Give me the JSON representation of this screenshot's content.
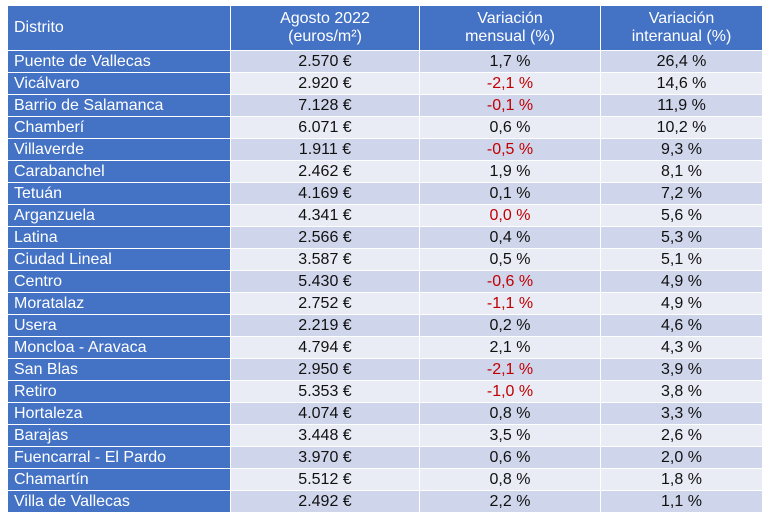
{
  "colors": {
    "header_bg": "#4472c4",
    "row_odd": "#cfd5ea",
    "row_even": "#e9ebf5",
    "negative_text": "#c00000"
  },
  "table": {
    "headers": {
      "district": "Distrito",
      "price_line1": "Agosto 2022",
      "price_line2": "(euros/m²)",
      "monthly_line1": "Variación",
      "monthly_line2": "mensual (%)",
      "annual_line1": "Variación",
      "annual_line2": "interanual (%)"
    },
    "rows": [
      {
        "district": "Puente de Vallecas",
        "price": "2.570 €",
        "monthly": "1,7 %",
        "annual": "26,4 %"
      },
      {
        "district": "Vicálvaro",
        "price": "2.920 €",
        "monthly": "-2,1 %",
        "annual": "14,6 %"
      },
      {
        "district": "Barrio de Salamanca",
        "price": "7.128 €",
        "monthly": "-0,1 %",
        "annual": "11,9 %"
      },
      {
        "district": "Chamberí",
        "price": "6.071 €",
        "monthly": "0,6 %",
        "annual": "10,2 %"
      },
      {
        "district": "Villaverde",
        "price": "1.911 €",
        "monthly": "-0,5 %",
        "annual": "9,3 %"
      },
      {
        "district": "Carabanchel",
        "price": "2.462 €",
        "monthly": "1,9 %",
        "annual": "8,1 %"
      },
      {
        "district": "Tetuán",
        "price": "4.169 €",
        "monthly": "0,1 %",
        "annual": "7,2 %"
      },
      {
        "district": "Arganzuela",
        "price": "4.341 €",
        "monthly": "0,0 %",
        "annual": "5,6 %"
      },
      {
        "district": "Latina",
        "price": "2.566 €",
        "monthly": "0,4 %",
        "annual": "5,3 %"
      },
      {
        "district": "Ciudad Lineal",
        "price": "3.587 €",
        "monthly": "0,5 %",
        "annual": "5,1 %"
      },
      {
        "district": "Centro",
        "price": "5.430 €",
        "monthly": "-0,6 %",
        "annual": "4,9 %"
      },
      {
        "district": "Moratalaz",
        "price": "2.752 €",
        "monthly": "-1,1 %",
        "annual": "4,9 %"
      },
      {
        "district": "Usera",
        "price": "2.219 €",
        "monthly": "0,2 %",
        "annual": "4,6 %"
      },
      {
        "district": "Moncloa - Aravaca",
        "price": "4.794 €",
        "monthly": "2,1 %",
        "annual": "4,3 %"
      },
      {
        "district": "San Blas",
        "price": "2.950 €",
        "monthly": "-2,1 %",
        "annual": "3,9 %"
      },
      {
        "district": "Retiro",
        "price": "5.353 €",
        "monthly": "-1,0 %",
        "annual": "3,8 %"
      },
      {
        "district": "Hortaleza",
        "price": "4.074 €",
        "monthly": "0,8 %",
        "annual": "3,3 %"
      },
      {
        "district": "Barajas",
        "price": "3.448 €",
        "monthly": "3,5 %",
        "annual": "2,6 %"
      },
      {
        "district": "Fuencarral - El Pardo",
        "price": "3.970 €",
        "monthly": "0,6 %",
        "annual": "2,0 %"
      },
      {
        "district": "Chamartín",
        "price": "5.512 €",
        "monthly": "0,8 %",
        "annual": "1,8 %"
      },
      {
        "district": "Villa de Vallecas",
        "price": "2.492 €",
        "monthly": "2,2 %",
        "annual": "1,1 %"
      }
    ],
    "negative_monthly_rows": [
      1,
      2,
      4,
      7,
      10,
      11,
      14,
      15
    ]
  }
}
